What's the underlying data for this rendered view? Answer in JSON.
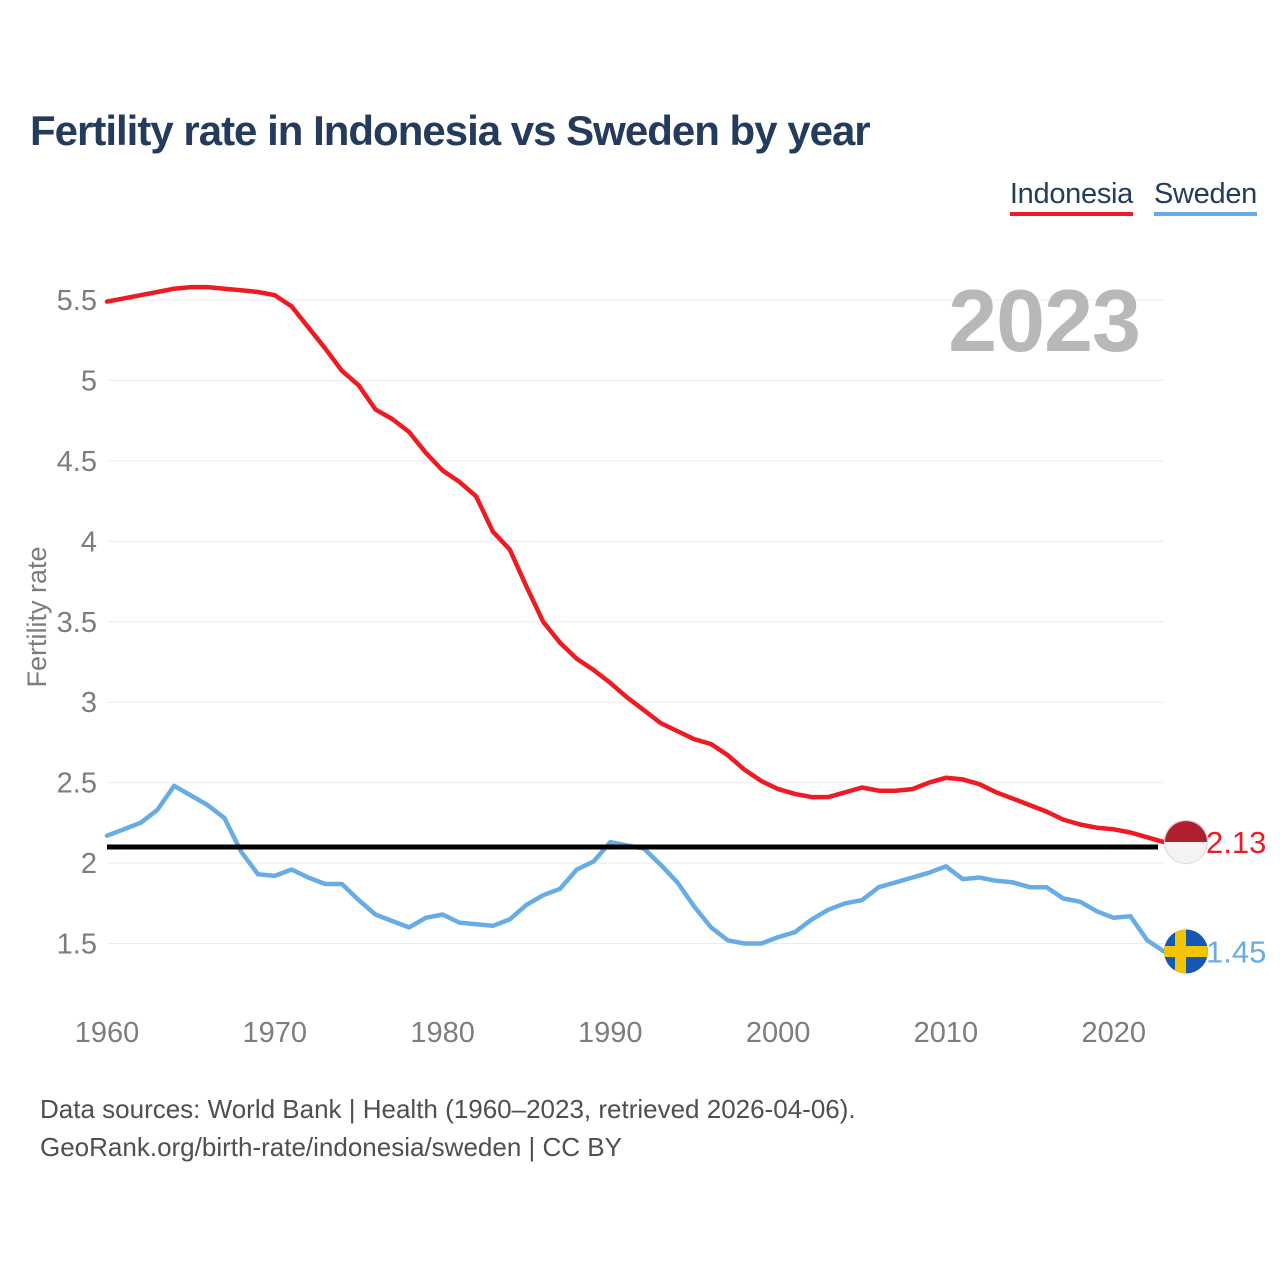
{
  "chart_data": {
    "type": "line",
    "title": "Fertility rate in Indonesia vs Sweden by year",
    "ylabel": "Fertility rate",
    "xlabel": "",
    "watermark": "2023",
    "legend_position": "top-right",
    "grid": true,
    "ylim": [
      1.5,
      5.5
    ],
    "x_ticks": [
      1960,
      1970,
      1980,
      1990,
      2000,
      2010,
      2020
    ],
    "y_ticks": [
      1.5,
      2,
      2.5,
      3,
      3.5,
      4,
      4.5,
      5,
      5.5
    ],
    "y_tick_labels": [
      "1.5",
      "2",
      "2.5",
      "3",
      "3.5",
      "4",
      "4.5",
      "5",
      "5.5"
    ],
    "reference_line": {
      "value": 2.1,
      "color": "#000000"
    },
    "x": [
      1960,
      1961,
      1962,
      1963,
      1964,
      1965,
      1966,
      1967,
      1968,
      1969,
      1970,
      1971,
      1972,
      1973,
      1974,
      1975,
      1976,
      1977,
      1978,
      1979,
      1980,
      1981,
      1982,
      1983,
      1984,
      1985,
      1986,
      1987,
      1988,
      1989,
      1990,
      1991,
      1992,
      1993,
      1994,
      1995,
      1996,
      1997,
      1998,
      1999,
      2000,
      2001,
      2002,
      2003,
      2004,
      2005,
      2006,
      2007,
      2008,
      2009,
      2010,
      2011,
      2012,
      2013,
      2014,
      2015,
      2016,
      2017,
      2018,
      2019,
      2020,
      2021,
      2022,
      2023
    ],
    "series": [
      {
        "name": "Indonesia",
        "color": "#ee1b23",
        "end_label": "2.13",
        "flag": "indonesia-flag",
        "values": [
          5.49,
          5.51,
          5.53,
          5.55,
          5.57,
          5.58,
          5.58,
          5.57,
          5.56,
          5.55,
          5.53,
          5.46,
          5.33,
          5.2,
          5.06,
          4.97,
          4.82,
          4.76,
          4.68,
          4.55,
          4.44,
          4.37,
          4.28,
          4.06,
          3.95,
          3.72,
          3.5,
          3.37,
          3.27,
          3.2,
          3.12,
          3.03,
          2.95,
          2.87,
          2.82,
          2.77,
          2.74,
          2.67,
          2.58,
          2.51,
          2.46,
          2.43,
          2.41,
          2.41,
          2.44,
          2.47,
          2.45,
          2.45,
          2.46,
          2.5,
          2.53,
          2.52,
          2.49,
          2.44,
          2.4,
          2.36,
          2.32,
          2.27,
          2.24,
          2.22,
          2.21,
          2.19,
          2.16,
          2.13
        ]
      },
      {
        "name": "Sweden",
        "color": "#68ace6",
        "end_label": "1.45",
        "flag": "sweden-flag",
        "values": [
          2.17,
          2.21,
          2.25,
          2.33,
          2.48,
          2.42,
          2.36,
          2.28,
          2.07,
          1.93,
          1.92,
          1.96,
          1.91,
          1.87,
          1.87,
          1.77,
          1.68,
          1.64,
          1.6,
          1.66,
          1.68,
          1.63,
          1.62,
          1.61,
          1.65,
          1.74,
          1.8,
          1.84,
          1.96,
          2.01,
          2.13,
          2.11,
          2.09,
          1.99,
          1.88,
          1.73,
          1.6,
          1.52,
          1.5,
          1.5,
          1.54,
          1.57,
          1.65,
          1.71,
          1.75,
          1.77,
          1.85,
          1.88,
          1.91,
          1.94,
          1.98,
          1.9,
          1.91,
          1.89,
          1.88,
          1.85,
          1.85,
          1.78,
          1.76,
          1.7,
          1.66,
          1.67,
          1.52,
          1.45
        ]
      }
    ]
  },
  "footer": {
    "line1": "Data sources: World Bank | Health (1960–2023, retrieved 2026-04-06).",
    "line2": "GeoRank.org/birth-rate/indonesia/sweden | CC BY"
  },
  "colors": {
    "title_text": "#243b5e",
    "axis_text": "#7d7d7d",
    "gridline": "#ebebeb",
    "watermark": "#b8b8b8",
    "footer_text": "#4f4f4f",
    "reference_line": "#000000",
    "background": "#ffffff"
  }
}
